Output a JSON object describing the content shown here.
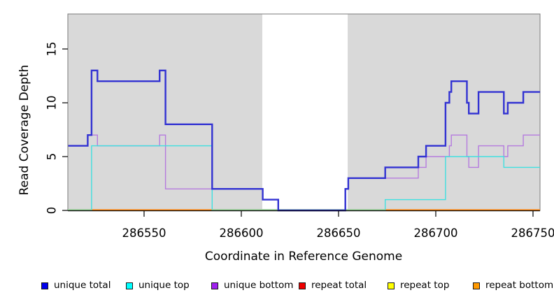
{
  "chart_data": {
    "type": "line",
    "subtype": "step-coverage-plot",
    "title": "",
    "xlabel": "Coordinate in Reference Genome",
    "ylabel": "Read Coverage Depth",
    "x_range": [
      286510.8,
      286753.6
    ],
    "y_range": [
      0,
      18.25
    ],
    "x_ticks": [
      286550,
      286600,
      286650,
      286700,
      286750
    ],
    "y_ticks": [
      0,
      5,
      10,
      15
    ],
    "grid": false,
    "legend_position": "bottom",
    "colors": {
      "shaded_region": "#d9d9d9",
      "gap_region": "#ffffff",
      "plot_border": "#7a7a7a",
      "axis": "#000000",
      "baseline_green": "#95cd95",
      "baseline_orange": "#ff8c1a"
    },
    "shaded_regions": [
      {
        "x0": 286510.8,
        "x1": 286610.8
      },
      {
        "x0": 286654.7,
        "x1": 286753.6
      }
    ],
    "gap_region": {
      "x0": 286610.8,
      "x1": 286654.7
    },
    "baseline_segments": [
      {
        "x0": 286510.8,
        "x1": 286523.0,
        "color": "#95cd95"
      },
      {
        "x0": 286523.0,
        "x1": 286585.0,
        "color": "#ff8c1a"
      },
      {
        "x0": 286585.0,
        "x1": 286674.0,
        "color": "#95cd95"
      },
      {
        "x0": 286674.0,
        "x1": 286753.6,
        "color": "#ff8c1a"
      }
    ],
    "series": [
      {
        "name": "unique total",
        "legend_color": "#0000ee",
        "line_color": "#3232d2",
        "line_width": 2.4,
        "steps": [
          [
            286511,
            6
          ],
          [
            286521,
            7
          ],
          [
            286523,
            13
          ],
          [
            286526,
            12
          ],
          [
            286558,
            13
          ],
          [
            286561,
            8
          ],
          [
            286585,
            2
          ],
          [
            286611,
            1
          ],
          [
            286619,
            0
          ],
          [
            286653.5,
            2
          ],
          [
            286655,
            3
          ],
          [
            286674,
            4
          ],
          [
            286691,
            5
          ],
          [
            286695,
            6
          ],
          [
            286705,
            10
          ],
          [
            286707,
            11
          ],
          [
            286708,
            12
          ],
          [
            286716,
            10
          ],
          [
            286717,
            9
          ],
          [
            286722,
            11
          ],
          [
            286735,
            9
          ],
          [
            286737,
            10
          ],
          [
            286745,
            11
          ]
        ]
      },
      {
        "name": "unique top",
        "legend_color": "#00ffff",
        "line_color": "#3fe0e0",
        "line_width": 1.4,
        "steps": [
          [
            286511,
            0
          ],
          [
            286523,
            6
          ],
          [
            286585,
            0
          ],
          [
            286674,
            1
          ],
          [
            286705,
            5
          ],
          [
            286735,
            4
          ]
        ]
      },
      {
        "name": "unique bottom",
        "legend_color": "#a020f0",
        "line_color": "#b57bde",
        "line_width": 1.4,
        "steps": [
          [
            286511,
            6
          ],
          [
            286521,
            7
          ],
          [
            286526,
            6
          ],
          [
            286558,
            7
          ],
          [
            286561,
            2
          ],
          [
            286611,
            1
          ],
          [
            286619,
            0
          ],
          [
            286653.5,
            2
          ],
          [
            286655,
            3
          ],
          [
            286691,
            4
          ],
          [
            286695,
            5
          ],
          [
            286707,
            6
          ],
          [
            286708,
            7
          ],
          [
            286716,
            5
          ],
          [
            286717,
            4
          ],
          [
            286722,
            6
          ],
          [
            286735,
            5
          ],
          [
            286737,
            6
          ],
          [
            286745,
            7
          ]
        ]
      },
      {
        "name": "repeat total",
        "legend_color": "#ee0000",
        "line_color": "#ee0000",
        "line_width": 1.4,
        "steps": [
          [
            286511,
            0
          ]
        ]
      },
      {
        "name": "repeat top",
        "legend_color": "#ffff00",
        "line_color": "#ffff00",
        "line_width": 1.4,
        "steps": [
          [
            286511,
            0
          ]
        ]
      },
      {
        "name": "repeat bottom",
        "legend_color": "#ff9900",
        "line_color": "#ff8c1a",
        "line_width": 1.4,
        "steps": [
          [
            286511,
            0
          ]
        ]
      }
    ],
    "legend": [
      {
        "label": "unique total",
        "color": "#0000ee"
      },
      {
        "label": "unique top",
        "color": "#00ffff"
      },
      {
        "label": "unique bottom",
        "color": "#a020f0"
      },
      {
        "label": "repeat total",
        "color": "#ee0000"
      },
      {
        "label": "repeat top",
        "color": "#ffff00"
      },
      {
        "label": "repeat bottom",
        "color": "#ff9900"
      }
    ]
  }
}
